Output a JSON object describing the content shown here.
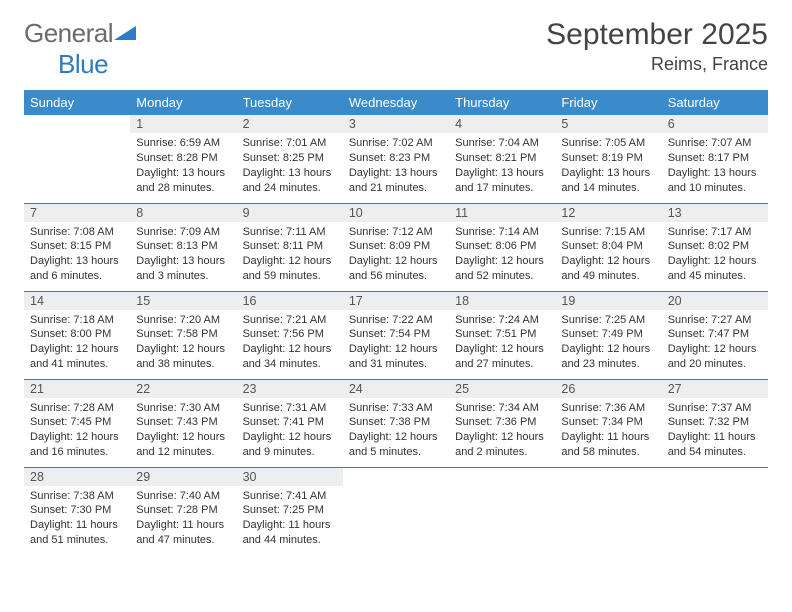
{
  "logo": {
    "text1": "General",
    "text2": "Blue"
  },
  "title": "September 2025",
  "location": "Reims, France",
  "colors": {
    "header_bg": "#3b8bcb",
    "header_text": "#ffffff",
    "row_divider": "#2d7bc0",
    "daynum_bg": "#eeeeee",
    "daynum_text": "#555555",
    "body_text": "#333333",
    "logo_gray": "#6b6b6b",
    "logo_blue": "#2d7bc0",
    "page_bg": "#ffffff"
  },
  "typography": {
    "title_fontsize": 30,
    "location_fontsize": 18,
    "logo_fontsize": 26,
    "dayheader_fontsize": 13,
    "daynum_fontsize": 12.5,
    "content_fontsize": 11
  },
  "day_headers": [
    "Sunday",
    "Monday",
    "Tuesday",
    "Wednesday",
    "Thursday",
    "Friday",
    "Saturday"
  ],
  "weeks": [
    [
      null,
      {
        "n": "1",
        "sr": "Sunrise: 6:59 AM",
        "ss": "Sunset: 8:28 PM",
        "d1": "Daylight: 13 hours",
        "d2": "and 28 minutes."
      },
      {
        "n": "2",
        "sr": "Sunrise: 7:01 AM",
        "ss": "Sunset: 8:25 PM",
        "d1": "Daylight: 13 hours",
        "d2": "and 24 minutes."
      },
      {
        "n": "3",
        "sr": "Sunrise: 7:02 AM",
        "ss": "Sunset: 8:23 PM",
        "d1": "Daylight: 13 hours",
        "d2": "and 21 minutes."
      },
      {
        "n": "4",
        "sr": "Sunrise: 7:04 AM",
        "ss": "Sunset: 8:21 PM",
        "d1": "Daylight: 13 hours",
        "d2": "and 17 minutes."
      },
      {
        "n": "5",
        "sr": "Sunrise: 7:05 AM",
        "ss": "Sunset: 8:19 PM",
        "d1": "Daylight: 13 hours",
        "d2": "and 14 minutes."
      },
      {
        "n": "6",
        "sr": "Sunrise: 7:07 AM",
        "ss": "Sunset: 8:17 PM",
        "d1": "Daylight: 13 hours",
        "d2": "and 10 minutes."
      }
    ],
    [
      {
        "n": "7",
        "sr": "Sunrise: 7:08 AM",
        "ss": "Sunset: 8:15 PM",
        "d1": "Daylight: 13 hours",
        "d2": "and 6 minutes."
      },
      {
        "n": "8",
        "sr": "Sunrise: 7:09 AM",
        "ss": "Sunset: 8:13 PM",
        "d1": "Daylight: 13 hours",
        "d2": "and 3 minutes."
      },
      {
        "n": "9",
        "sr": "Sunrise: 7:11 AM",
        "ss": "Sunset: 8:11 PM",
        "d1": "Daylight: 12 hours",
        "d2": "and 59 minutes."
      },
      {
        "n": "10",
        "sr": "Sunrise: 7:12 AM",
        "ss": "Sunset: 8:09 PM",
        "d1": "Daylight: 12 hours",
        "d2": "and 56 minutes."
      },
      {
        "n": "11",
        "sr": "Sunrise: 7:14 AM",
        "ss": "Sunset: 8:06 PM",
        "d1": "Daylight: 12 hours",
        "d2": "and 52 minutes."
      },
      {
        "n": "12",
        "sr": "Sunrise: 7:15 AM",
        "ss": "Sunset: 8:04 PM",
        "d1": "Daylight: 12 hours",
        "d2": "and 49 minutes."
      },
      {
        "n": "13",
        "sr": "Sunrise: 7:17 AM",
        "ss": "Sunset: 8:02 PM",
        "d1": "Daylight: 12 hours",
        "d2": "and 45 minutes."
      }
    ],
    [
      {
        "n": "14",
        "sr": "Sunrise: 7:18 AM",
        "ss": "Sunset: 8:00 PM",
        "d1": "Daylight: 12 hours",
        "d2": "and 41 minutes."
      },
      {
        "n": "15",
        "sr": "Sunrise: 7:20 AM",
        "ss": "Sunset: 7:58 PM",
        "d1": "Daylight: 12 hours",
        "d2": "and 38 minutes."
      },
      {
        "n": "16",
        "sr": "Sunrise: 7:21 AM",
        "ss": "Sunset: 7:56 PM",
        "d1": "Daylight: 12 hours",
        "d2": "and 34 minutes."
      },
      {
        "n": "17",
        "sr": "Sunrise: 7:22 AM",
        "ss": "Sunset: 7:54 PM",
        "d1": "Daylight: 12 hours",
        "d2": "and 31 minutes."
      },
      {
        "n": "18",
        "sr": "Sunrise: 7:24 AM",
        "ss": "Sunset: 7:51 PM",
        "d1": "Daylight: 12 hours",
        "d2": "and 27 minutes."
      },
      {
        "n": "19",
        "sr": "Sunrise: 7:25 AM",
        "ss": "Sunset: 7:49 PM",
        "d1": "Daylight: 12 hours",
        "d2": "and 23 minutes."
      },
      {
        "n": "20",
        "sr": "Sunrise: 7:27 AM",
        "ss": "Sunset: 7:47 PM",
        "d1": "Daylight: 12 hours",
        "d2": "and 20 minutes."
      }
    ],
    [
      {
        "n": "21",
        "sr": "Sunrise: 7:28 AM",
        "ss": "Sunset: 7:45 PM",
        "d1": "Daylight: 12 hours",
        "d2": "and 16 minutes."
      },
      {
        "n": "22",
        "sr": "Sunrise: 7:30 AM",
        "ss": "Sunset: 7:43 PM",
        "d1": "Daylight: 12 hours",
        "d2": "and 12 minutes."
      },
      {
        "n": "23",
        "sr": "Sunrise: 7:31 AM",
        "ss": "Sunset: 7:41 PM",
        "d1": "Daylight: 12 hours",
        "d2": "and 9 minutes."
      },
      {
        "n": "24",
        "sr": "Sunrise: 7:33 AM",
        "ss": "Sunset: 7:38 PM",
        "d1": "Daylight: 12 hours",
        "d2": "and 5 minutes."
      },
      {
        "n": "25",
        "sr": "Sunrise: 7:34 AM",
        "ss": "Sunset: 7:36 PM",
        "d1": "Daylight: 12 hours",
        "d2": "and 2 minutes."
      },
      {
        "n": "26",
        "sr": "Sunrise: 7:36 AM",
        "ss": "Sunset: 7:34 PM",
        "d1": "Daylight: 11 hours",
        "d2": "and 58 minutes."
      },
      {
        "n": "27",
        "sr": "Sunrise: 7:37 AM",
        "ss": "Sunset: 7:32 PM",
        "d1": "Daylight: 11 hours",
        "d2": "and 54 minutes."
      }
    ],
    [
      {
        "n": "28",
        "sr": "Sunrise: 7:38 AM",
        "ss": "Sunset: 7:30 PM",
        "d1": "Daylight: 11 hours",
        "d2": "and 51 minutes."
      },
      {
        "n": "29",
        "sr": "Sunrise: 7:40 AM",
        "ss": "Sunset: 7:28 PM",
        "d1": "Daylight: 11 hours",
        "d2": "and 47 minutes."
      },
      {
        "n": "30",
        "sr": "Sunrise: 7:41 AM",
        "ss": "Sunset: 7:25 PM",
        "d1": "Daylight: 11 hours",
        "d2": "and 44 minutes."
      },
      null,
      null,
      null,
      null
    ]
  ]
}
